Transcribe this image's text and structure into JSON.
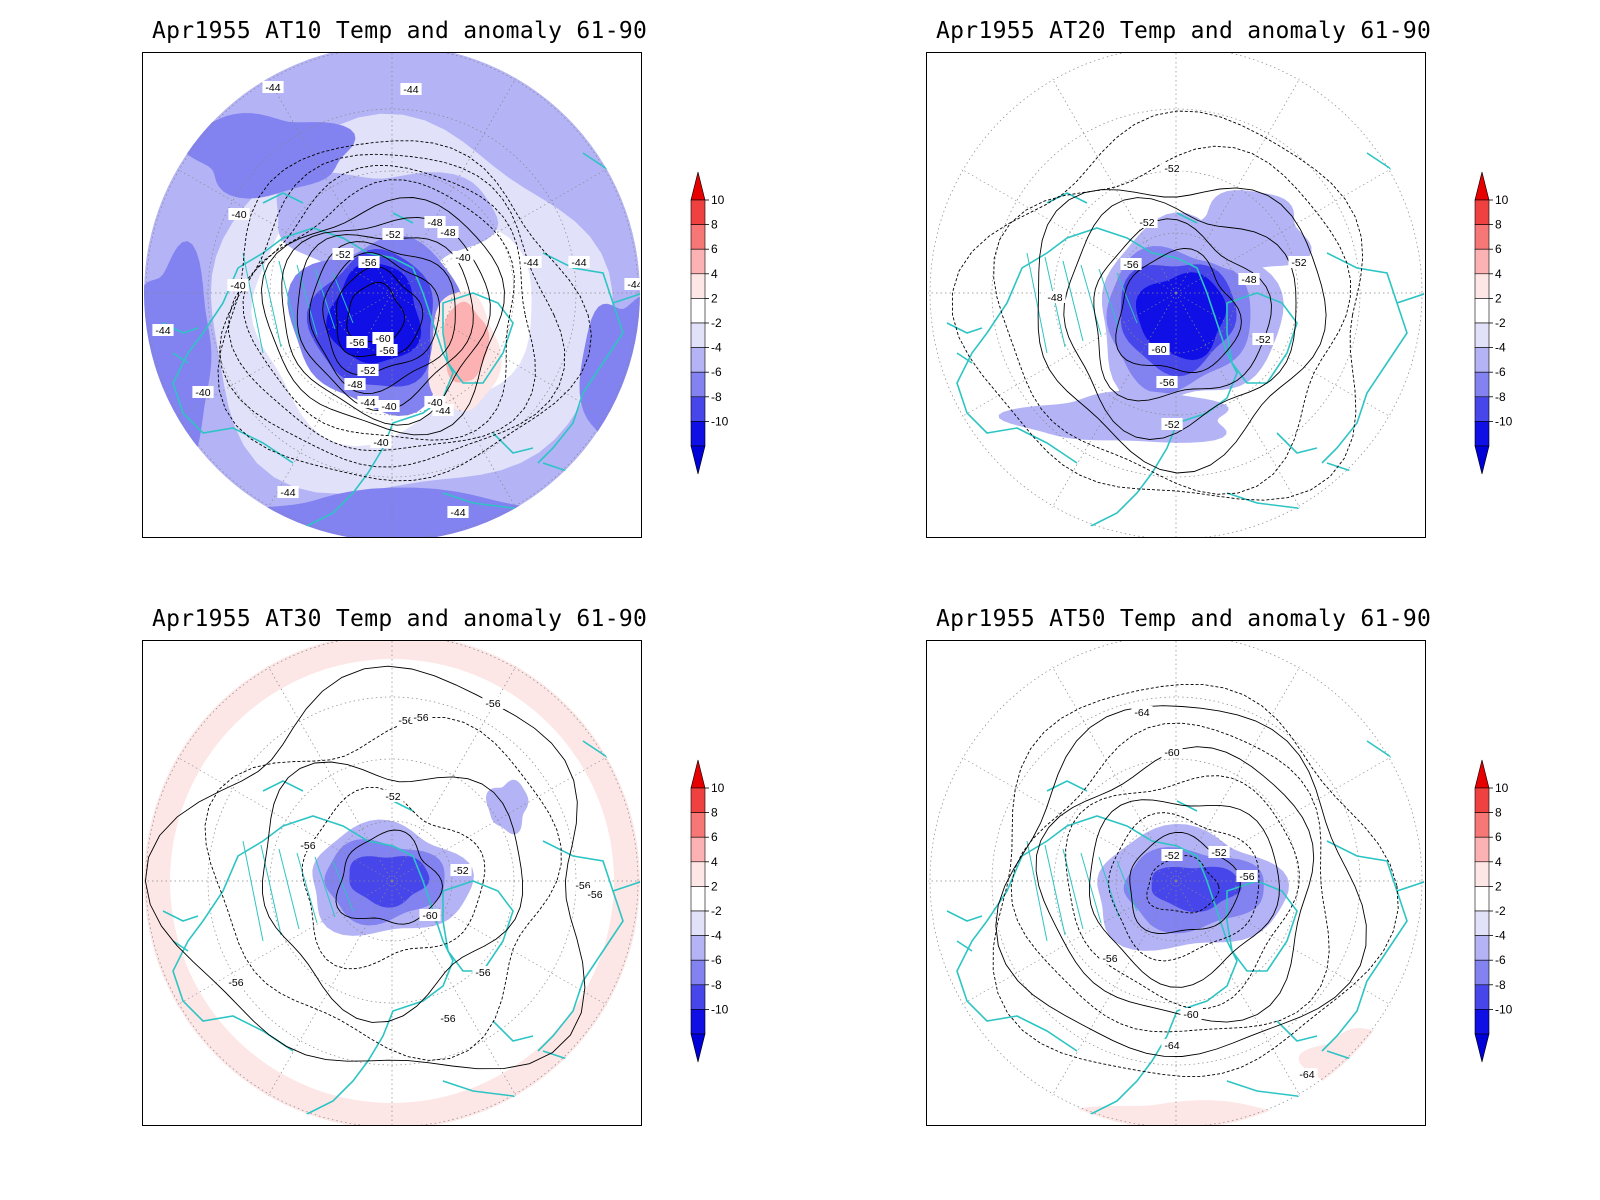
{
  "panels": [
    {
      "title": "Apr1955 AT10 Temp and anomaly 61-90",
      "contour_labels": [
        "-44",
        "-44",
        "-40",
        "-40",
        "-52",
        "-56",
        "-52",
        "-48",
        "-48",
        "-40",
        "-44",
        "-44",
        "-44",
        "-40",
        "-60",
        "-56",
        "-56",
        "-52",
        "-48",
        "-44",
        "-40",
        "-44",
        "-40",
        "-40",
        "-44",
        "-44",
        "-44"
      ]
    },
    {
      "title": "Apr1955 AT20 Temp and anomaly 61-90",
      "contour_labels": [
        "-52",
        "-52",
        "-56",
        "-48",
        "-48",
        "-52",
        "-60",
        "-52",
        "-56",
        "-52"
      ]
    },
    {
      "title": "Apr1955 AT30 Temp and anomaly 61-90",
      "contour_labels": [
        "-56",
        "-56",
        "-56",
        "-52",
        "-56",
        "-52",
        "-60",
        "-56",
        "-56",
        "-56",
        "-56",
        "-56"
      ]
    },
    {
      "title": "Apr1955 AT50 Temp and anomaly 61-90",
      "contour_labels": [
        "-64",
        "-60",
        "-52",
        "-52",
        "-56",
        "-56",
        "-60",
        "-64",
        "-64"
      ]
    }
  ],
  "colorbar": {
    "labels": [
      "10",
      "8",
      "6",
      "4",
      "2",
      "-2",
      "-4",
      "-6",
      "-8",
      "-10"
    ],
    "colors": [
      "#e60000",
      "#f04141",
      "#f77777",
      "#fcb2b2",
      "#fde6e6",
      "#ffffff",
      "#e1e1fa",
      "#b3b3f5",
      "#8282f0",
      "#4646ea",
      "#0f0fe6",
      "#0000d8"
    ]
  },
  "colors": {
    "coastline": "#2ec4c4",
    "contour": "#000000",
    "graticule": "#888888"
  }
}
